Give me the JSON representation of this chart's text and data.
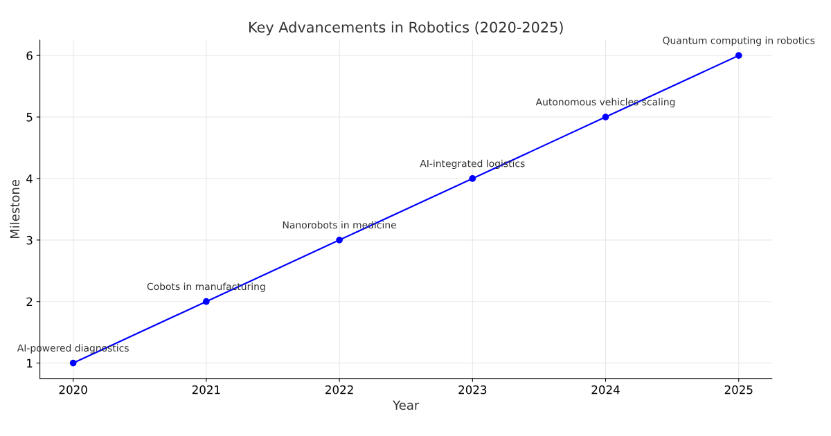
{
  "chart_data": {
    "type": "line",
    "title": "Key Advancements in Robotics (2020-2025)",
    "xlabel": "Year",
    "ylabel": "Milestone",
    "x": [
      2020,
      2021,
      2022,
      2023,
      2024,
      2025
    ],
    "series": [
      {
        "color": "#0000ff",
        "values": [
          1,
          2,
          3,
          4,
          5,
          6
        ]
      }
    ],
    "xlim": [
      2019.75,
      2025.25
    ],
    "xticks": [
      2020,
      2021,
      2022,
      2023,
      2024,
      2025
    ],
    "ylim": [
      0.75,
      6.25
    ],
    "yticks": [
      1,
      2,
      3,
      4,
      5,
      6
    ],
    "grid": true,
    "marker": "circle",
    "line_style": "solid",
    "annotations": [
      {
        "text": "AI-powered diagnostics",
        "x": 2020,
        "y": 1
      },
      {
        "text": "Cobots in manufacturing",
        "x": 2021,
        "y": 2
      },
      {
        "text": "Nanorobots in medicine",
        "x": 2022,
        "y": 3
      },
      {
        "text": "AI-integrated logistics",
        "x": 2023,
        "y": 4
      },
      {
        "text": "Autonomous vehicles scaling",
        "x": 2024,
        "y": 5
      },
      {
        "text": "Quantum computing in robotics",
        "x": 2025,
        "y": 6
      }
    ]
  }
}
